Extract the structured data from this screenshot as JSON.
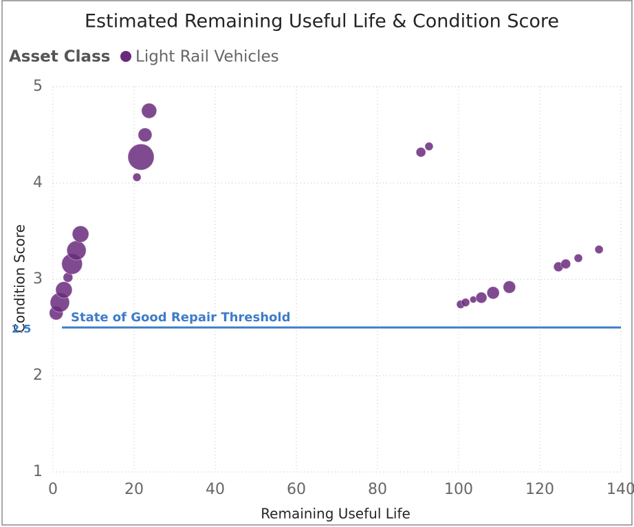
{
  "chart_data": {
    "type": "scatter",
    "title": "Estimated Remaining Useful Life & Condition Score",
    "legend_title": "Asset Class",
    "x_label": "Remaining Useful Life",
    "y_label": "Condition Score",
    "series": [
      {
        "name": "Light Rail Vehicles",
        "color": "#6a2a7c",
        "x": [
          0.8,
          1.7,
          2.7,
          3.7,
          4.7,
          5.8,
          6.8,
          20.7,
          21.7,
          22.7,
          23.7,
          90.7,
          92.7,
          100.5,
          101.7,
          103.6,
          105.6,
          108.5,
          112.5,
          124.6,
          126.4,
          129.5,
          134.6
        ],
        "values": [
          2.65,
          2.76,
          2.89,
          3.02,
          3.16,
          3.3,
          3.47,
          4.06,
          4.27,
          4.5,
          4.75,
          4.32,
          4.38,
          2.74,
          2.76,
          2.79,
          2.81,
          2.86,
          2.92,
          3.13,
          3.16,
          3.22,
          3.31
        ],
        "sizes": [
          10,
          14,
          12,
          7,
          15,
          14,
          12,
          6,
          19,
          10,
          11,
          7,
          6,
          6,
          6,
          5,
          8,
          9,
          9,
          7,
          7,
          6,
          6
        ]
      }
    ],
    "xlim": [
      0,
      140
    ],
    "xticks": [
      0,
      20,
      40,
      60,
      80,
      100,
      120,
      140
    ],
    "ylim": [
      1,
      5
    ],
    "yticks": [
      1,
      2,
      3,
      4,
      5
    ],
    "grid": true,
    "threshold": {
      "value": 2.5,
      "text": "State of Good Repair Threshold",
      "color": "#3d7cc9"
    }
  }
}
